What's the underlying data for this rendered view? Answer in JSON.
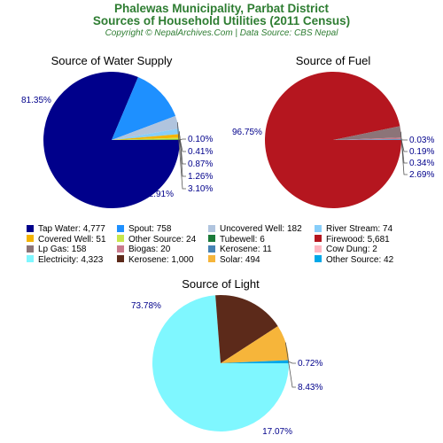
{
  "header": {
    "title_line1": "Phalewas Municipality, Parbat District",
    "title_line2": "Sources of Household Utilities (2011 Census)",
    "credit": "Copyright © NepalArchives.Com | Data Source: CBS Nepal"
  },
  "legend": [
    {
      "label": "Tap Water: 4,777",
      "color": "#00008b"
    },
    {
      "label": "Spout: 758",
      "color": "#1e90ff"
    },
    {
      "label": "Uncovered Well: 182",
      "color": "#b0c4de"
    },
    {
      "label": "River Stream: 74",
      "color": "#87cefa"
    },
    {
      "label": "Covered Well: 51",
      "color": "#f4b400"
    },
    {
      "label": "Other Source: 24",
      "color": "#c8e64b"
    },
    {
      "label": "Tubewell: 6",
      "color": "#1b7a3a"
    },
    {
      "label": "Firewood: 5,681",
      "color": "#b5161f"
    },
    {
      "label": "Lp Gas: 158",
      "color": "#8c7478"
    },
    {
      "label": "Biogas: 20",
      "color": "#c97a8c"
    },
    {
      "label": "Kerosene: 11",
      "color": "#4682b4"
    },
    {
      "label": "Cow Dung: 2",
      "color": "#ffb6c1"
    },
    {
      "label": "Electricity: 4,323",
      "color": "#7ff7ff"
    },
    {
      "label": "Kerosene: 1,000",
      "color": "#5c2a1a"
    },
    {
      "label": "Solar: 494",
      "color": "#f6b53a"
    },
    {
      "label": "Other Source: 42",
      "color": "#00a8e8"
    }
  ],
  "chart_data": [
    {
      "type": "pie",
      "title": "Source of Water Supply",
      "slices": [
        {
          "name": "Tap Water",
          "value": 4777,
          "label": "81.35%",
          "color": "#00008b"
        },
        {
          "name": "Spout",
          "value": 758,
          "label": "12.91%",
          "color": "#1e90ff"
        },
        {
          "name": "Uncovered Well",
          "value": 182,
          "label": "3.10%",
          "color": "#b0c4de"
        },
        {
          "name": "River Stream",
          "value": 74,
          "label": "1.26%",
          "color": "#87cefa"
        },
        {
          "name": "Covered Well",
          "value": 51,
          "label": "0.87%",
          "color": "#f4b400"
        },
        {
          "name": "Other Source",
          "value": 24,
          "label": "0.41%",
          "color": "#c8e64b"
        },
        {
          "name": "Tubewell",
          "value": 6,
          "label": "0.10%",
          "color": "#1b7a3a"
        }
      ]
    },
    {
      "type": "pie",
      "title": "Source of Fuel",
      "slices": [
        {
          "name": "Firewood",
          "value": 5681,
          "label": "96.75%",
          "color": "#b5161f"
        },
        {
          "name": "Lp Gas",
          "value": 158,
          "label": "2.69%",
          "color": "#8c7478"
        },
        {
          "name": "Biogas",
          "value": 20,
          "label": "0.34%",
          "color": "#c97a8c"
        },
        {
          "name": "Kerosene",
          "value": 11,
          "label": "0.19%",
          "color": "#4682b4"
        },
        {
          "name": "Cow Dung",
          "value": 2,
          "label": "0.03%",
          "color": "#ffb6c1"
        }
      ]
    },
    {
      "type": "pie",
      "title": "Source of Light",
      "slices": [
        {
          "name": "Electricity",
          "value": 4323,
          "label": "73.78%",
          "color": "#7ff7ff"
        },
        {
          "name": "Kerosene",
          "value": 1000,
          "label": "17.07%",
          "color": "#5c2a1a"
        },
        {
          "name": "Solar",
          "value": 494,
          "label": "8.43%",
          "color": "#f6b53a"
        },
        {
          "name": "Other Source",
          "value": 42,
          "label": "0.72%",
          "color": "#00a8e8"
        }
      ]
    }
  ]
}
